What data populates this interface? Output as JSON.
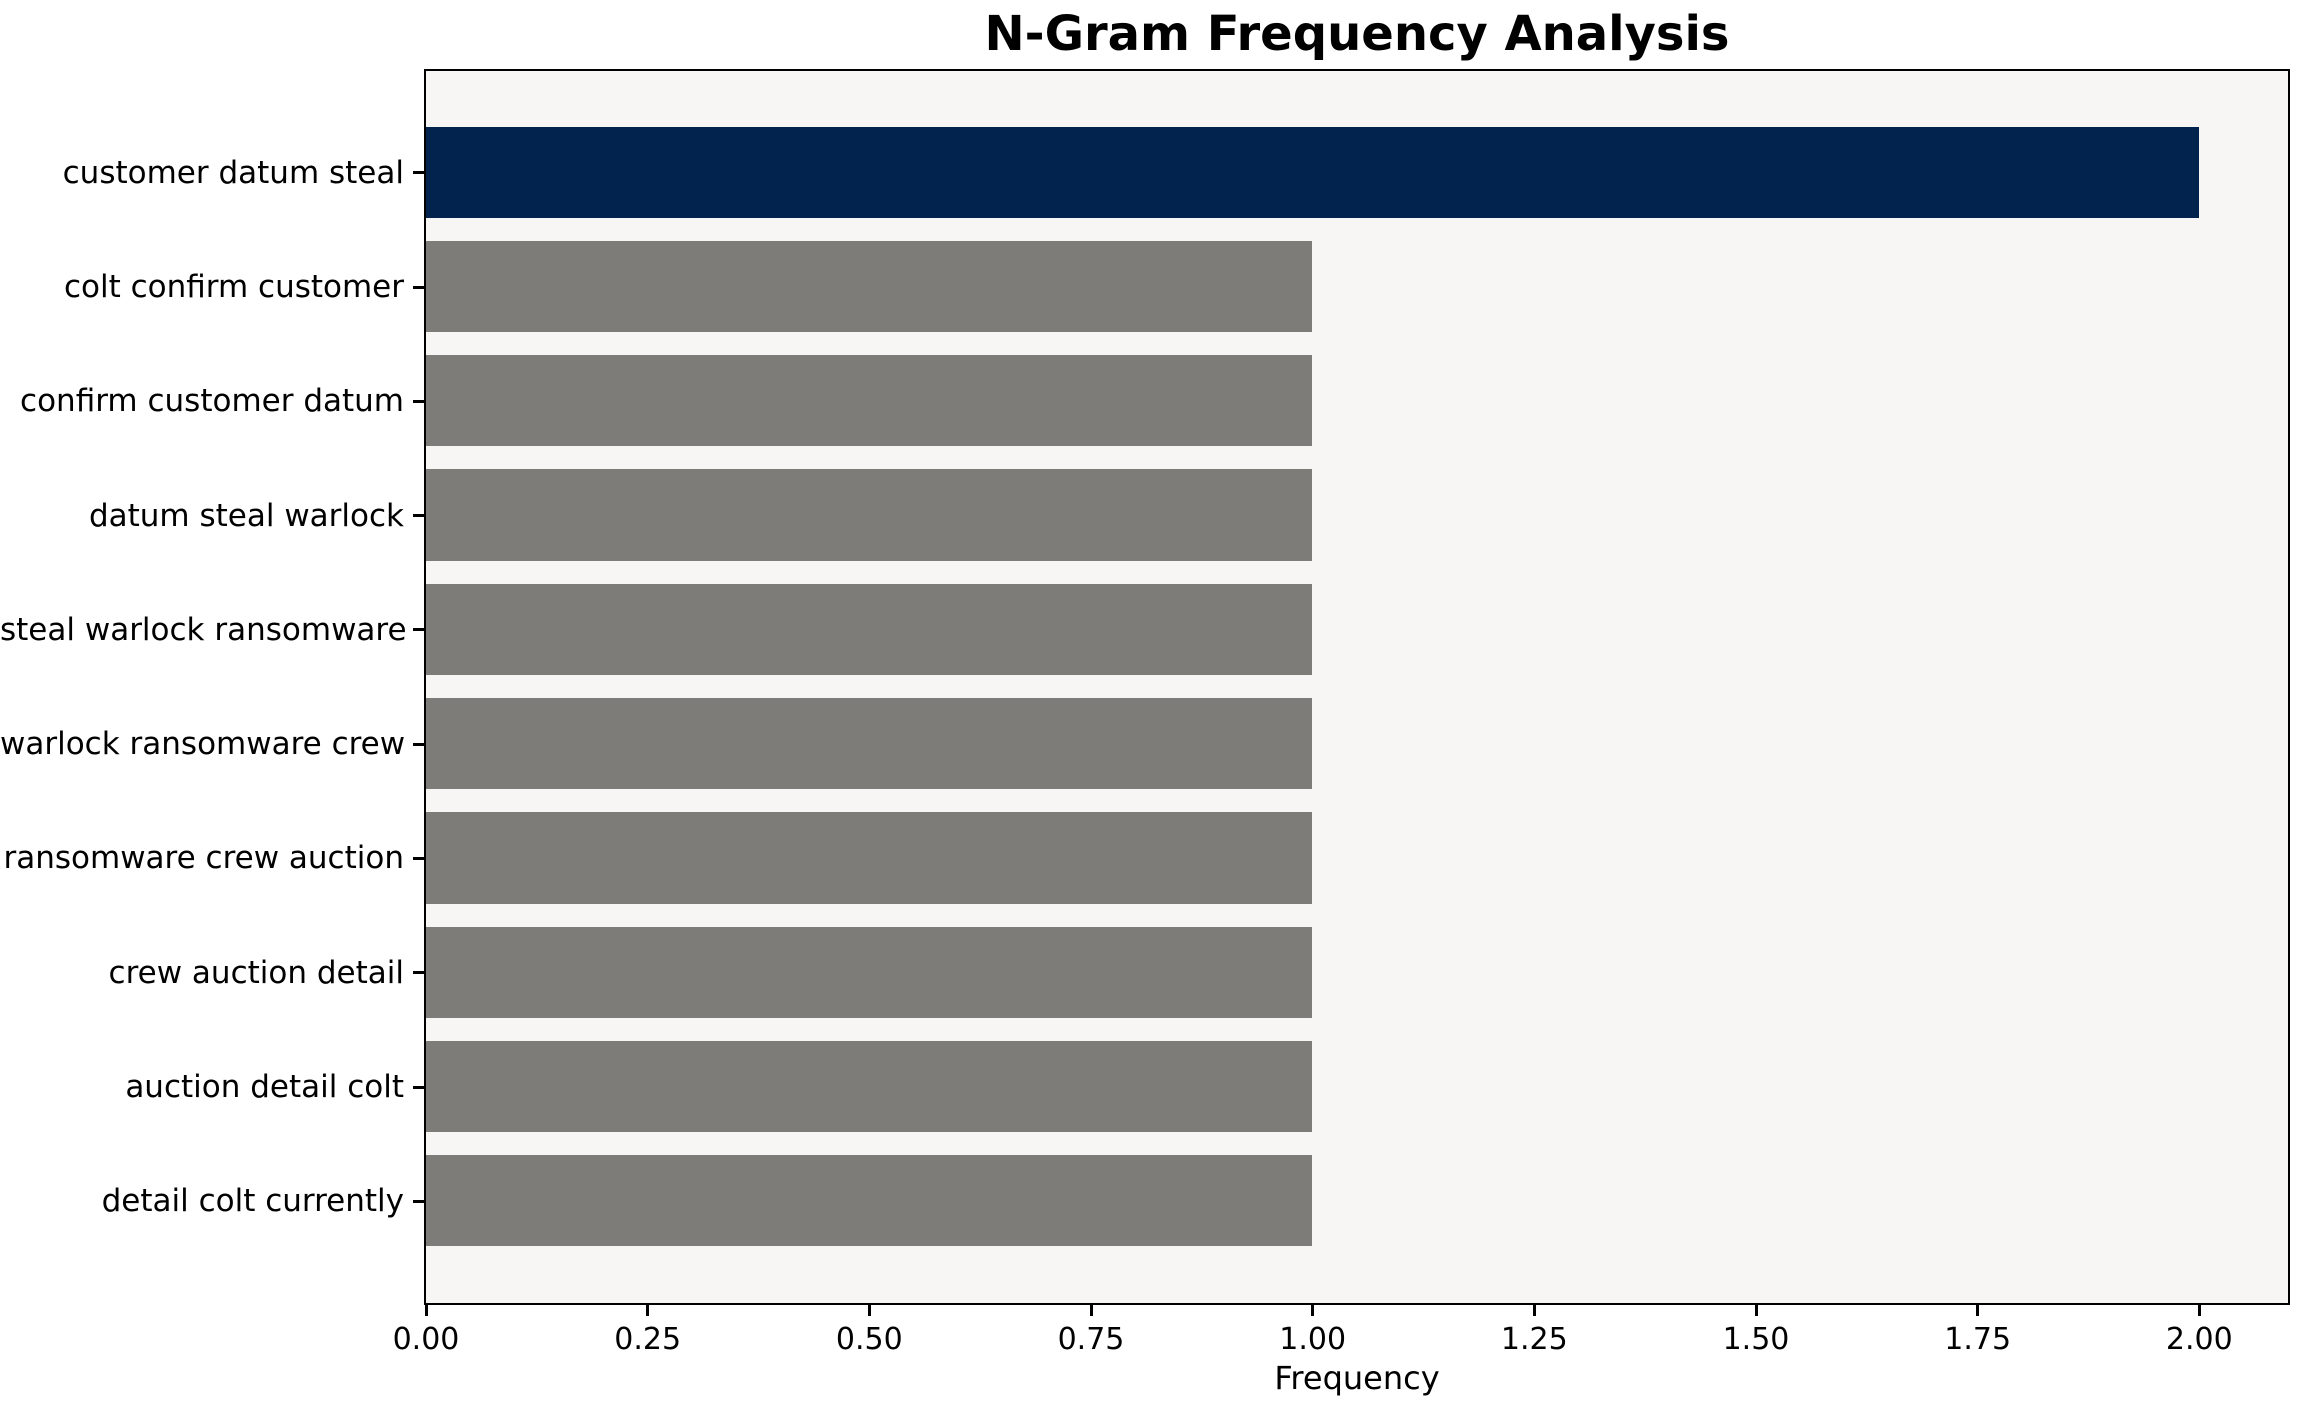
{
  "chart_data": {
    "type": "bar",
    "orientation": "horizontal",
    "title": "N-Gram Frequency Analysis",
    "xlabel": "Frequency",
    "ylabel": "",
    "categories": [
      "customer datum steal",
      "colt confirm customer",
      "confirm customer datum",
      "datum steal warlock",
      "steal warlock ransomware",
      "warlock ransomware crew",
      "ransomware crew auction",
      "crew auction detail",
      "auction detail colt",
      "detail colt currently"
    ],
    "values": [
      2,
      1,
      1,
      1,
      1,
      1,
      1,
      1,
      1,
      1
    ],
    "xlim": [
      0,
      2.1
    ],
    "xticks": [
      0,
      0.25,
      0.5,
      0.75,
      1,
      1.25,
      1.5,
      1.75,
      2
    ],
    "xtick_labels": [
      "0.00",
      "0.25",
      "0.50",
      "0.75",
      "1.00",
      "1.25",
      "1.50",
      "1.75",
      "2.00"
    ],
    "grid": false,
    "legend": null,
    "highlight_index": 0,
    "colors": {
      "highlight_bar": "#02234d",
      "default_bar": "#7d7c79",
      "plot_background": "#f7f6f5",
      "figure_background": "#ffffff",
      "spine": "#000000",
      "text": "#000000"
    }
  }
}
